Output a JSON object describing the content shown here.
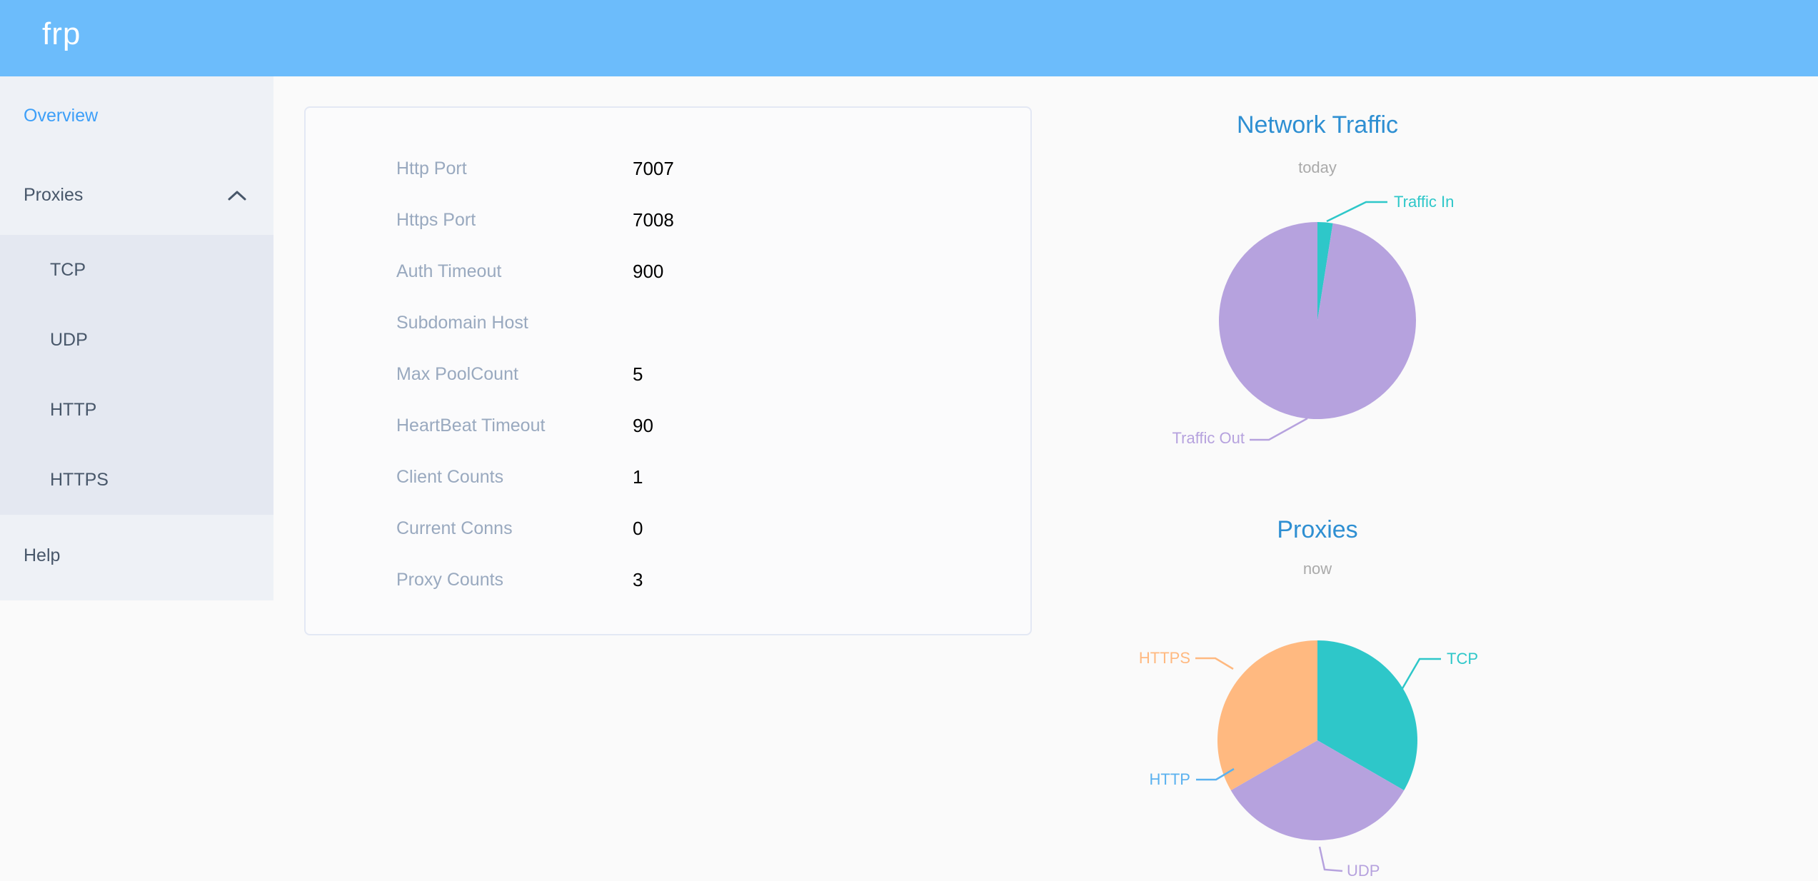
{
  "header": {
    "logo": "frp"
  },
  "sidebar": {
    "items": [
      {
        "label": "Overview",
        "state": "active"
      },
      {
        "label": "Proxies",
        "state": "expanded"
      },
      {
        "label": "Help",
        "state": "normal"
      }
    ],
    "proxies_submenu": [
      "TCP",
      "UDP",
      "HTTP",
      "HTTPS"
    ]
  },
  "overview_card": {
    "rows": [
      {
        "label": "Http Port",
        "value": "7007"
      },
      {
        "label": "Https Port",
        "value": "7008"
      },
      {
        "label": "Auth Timeout",
        "value": "900"
      },
      {
        "label": "Subdomain Host",
        "value": ""
      },
      {
        "label": "Max PoolCount",
        "value": "5"
      },
      {
        "label": "HeartBeat Timeout",
        "value": "90"
      },
      {
        "label": "Client Counts",
        "value": "1"
      },
      {
        "label": "Current Conns",
        "value": "0"
      },
      {
        "label": "Proxy Counts",
        "value": "3"
      }
    ]
  },
  "chart_data": [
    {
      "type": "pie",
      "title": "Network Traffic",
      "subtitle": "today",
      "start_angle": "12-oclock",
      "direction": "clockwise",
      "labels": "outside with leader lines",
      "unit": "percent (estimated from slice angles, no numbers shown)",
      "series": [
        {
          "name": "Traffic In",
          "value": 2.5,
          "color": "#2ec7c9"
        },
        {
          "name": "Traffic Out",
          "value": 97.5,
          "color": "#b6a2de"
        }
      ]
    },
    {
      "type": "pie",
      "title": "Proxies",
      "subtitle": "now",
      "start_angle": "12-oclock",
      "direction": "clockwise",
      "labels": "outside with leader lines",
      "unit": "proxy count",
      "series": [
        {
          "name": "TCP",
          "value": 1,
          "color": "#2ec7c9"
        },
        {
          "name": "UDP",
          "value": 1,
          "color": "#b6a2de"
        },
        {
          "name": "HTTP",
          "value": 0,
          "color": "#5ab1ef"
        },
        {
          "name": "HTTPS",
          "value": 1,
          "color": "#ffb980"
        }
      ]
    }
  ],
  "colors": {
    "header_bg": "#6cbcfb",
    "sidebar_bg": "#eef1f6",
    "submenu_bg": "#e4e8f1",
    "sidebar_text": "#48576a",
    "active_item": "#3d9ff8",
    "card_label": "#99a9bf",
    "chart_title": "#2e8fd2",
    "page_bg": "#fafafa"
  }
}
